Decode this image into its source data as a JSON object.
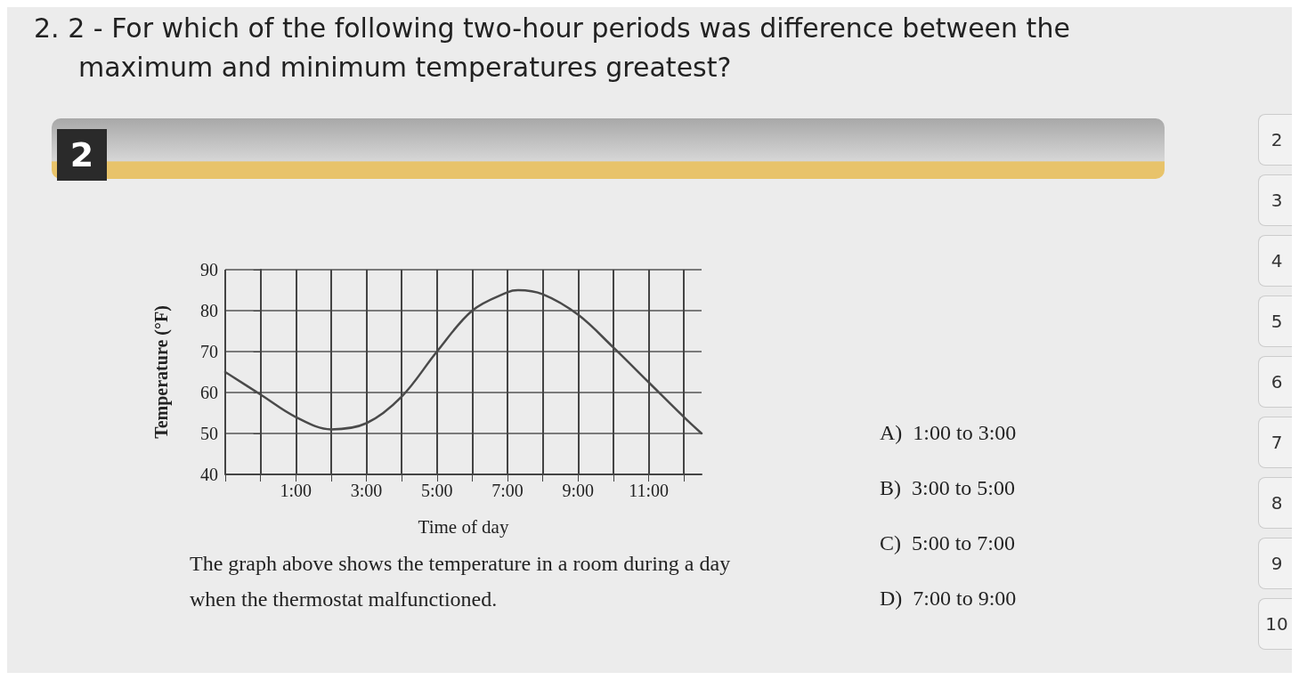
{
  "chart_data": {
    "type": "line",
    "title": "2. 2 - For which of the following two-hour periods was difference between the maximum and minimum temperatures greatest?",
    "xlabel": "Time of day",
    "ylabel": "Temperature (°F)",
    "x": [
      -1,
      0,
      1,
      2,
      3,
      4,
      5,
      6,
      7,
      7.3,
      8,
      9,
      10,
      11,
      12,
      12.5
    ],
    "series": [
      {
        "color": "#4a4a4a",
        "values": [
          65,
          59.5,
          54,
          51,
          52.5,
          59,
          70,
          80,
          84.5,
          85,
          84,
          79,
          71,
          62.5,
          54,
          50
        ]
      }
    ],
    "xlim": [
      -1,
      12.5
    ],
    "xticks": [
      {
        "value": -1,
        "label": null
      },
      {
        "value": 0,
        "label": null
      },
      {
        "value": 1,
        "label": "1:00"
      },
      {
        "value": 2,
        "label": null
      },
      {
        "value": 3,
        "label": "3:00"
      },
      {
        "value": 4,
        "label": null
      },
      {
        "value": 5,
        "label": "5:00"
      },
      {
        "value": 6,
        "label": null
      },
      {
        "value": 7,
        "label": "7:00"
      },
      {
        "value": 8,
        "label": null
      },
      {
        "value": 9,
        "label": "9:00"
      },
      {
        "value": 10,
        "label": null
      },
      {
        "value": 11,
        "label": "11:00"
      },
      {
        "value": 12,
        "label": null
      }
    ],
    "ylim": [
      40,
      90
    ],
    "yticks": [
      40,
      50,
      60,
      70,
      80,
      90
    ],
    "grid": true,
    "marker": "none",
    "line_style": "solid",
    "annotations": [
      "The graph above shows the temperature in a room during a day when the thermostat malfunctioned.",
      "A)  1:00 to 3:00",
      "B)  3:00 to 5:00",
      "C)  5:00 to 7:00",
      "D)  7:00 to 9:00",
      "2",
      "2",
      "3",
      "4",
      "5",
      "6",
      "7",
      "8",
      "9",
      "10"
    ]
  }
}
